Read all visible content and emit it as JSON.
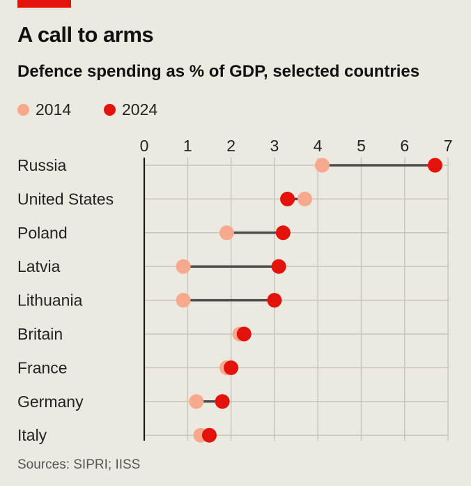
{
  "header": {
    "title": "A call to arms",
    "subtitle": "Defence spending as % of GDP, selected countries"
  },
  "legend": [
    {
      "label": "2014",
      "color": "#f7a98d"
    },
    {
      "label": "2024",
      "color": "#e3120b"
    }
  ],
  "footer": {
    "source": "Sources: SIPRI; IISS"
  },
  "colors": {
    "accent": "#e3120b",
    "dot_2014": "#f7a98d",
    "dot_2024": "#e3120b",
    "connector": "#4d4d4d",
    "grid": "#c8c6bf",
    "axis": "#1a1a1a",
    "background": "#ece9e1"
  },
  "chart_data": {
    "type": "scatter",
    "subtype": "dumbbell",
    "title": "Defence spending as % of GDP, selected countries",
    "xlabel": "",
    "ylabel": "",
    "xlim": [
      0,
      7
    ],
    "x_ticks": [
      "0",
      "1",
      "2",
      "3",
      "4",
      "5",
      "6",
      "7"
    ],
    "x_axis_position": "top",
    "grid": true,
    "legend_position": "top-left",
    "categories": [
      "Russia",
      "United States",
      "Poland",
      "Latvia",
      "Lithuania",
      "Britain",
      "France",
      "Germany",
      "Italy"
    ],
    "series": [
      {
        "name": "2014",
        "values": [
          4.1,
          3.7,
          1.9,
          0.9,
          0.9,
          2.2,
          1.9,
          1.2,
          1.3
        ]
      },
      {
        "name": "2024",
        "values": [
          6.7,
          3.3,
          3.2,
          3.1,
          3.0,
          2.3,
          2.0,
          1.8,
          1.5
        ]
      }
    ]
  }
}
